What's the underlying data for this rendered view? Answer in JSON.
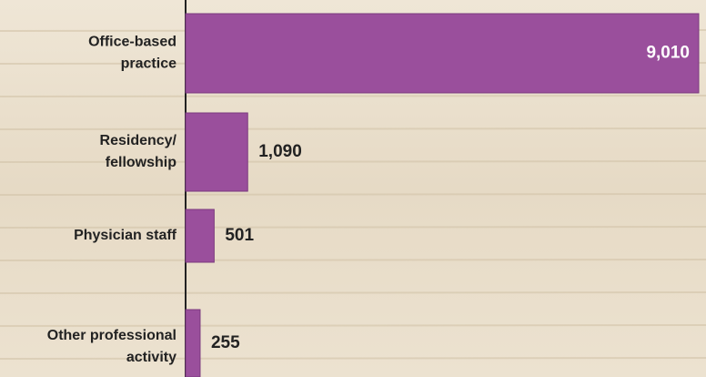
{
  "chart_data": {
    "type": "bar",
    "orientation": "horizontal",
    "categories": [
      [
        "Office-based",
        "practice"
      ],
      [
        "Residency/",
        "fellowship"
      ],
      [
        "Physician staff"
      ],
      [
        "Other professional",
        "activity"
      ]
    ],
    "values": [
      9010,
      1090,
      501,
      255
    ],
    "value_labels": [
      "9,010",
      "1,090",
      "501",
      "255"
    ],
    "color": "#9a4f9c"
  }
}
